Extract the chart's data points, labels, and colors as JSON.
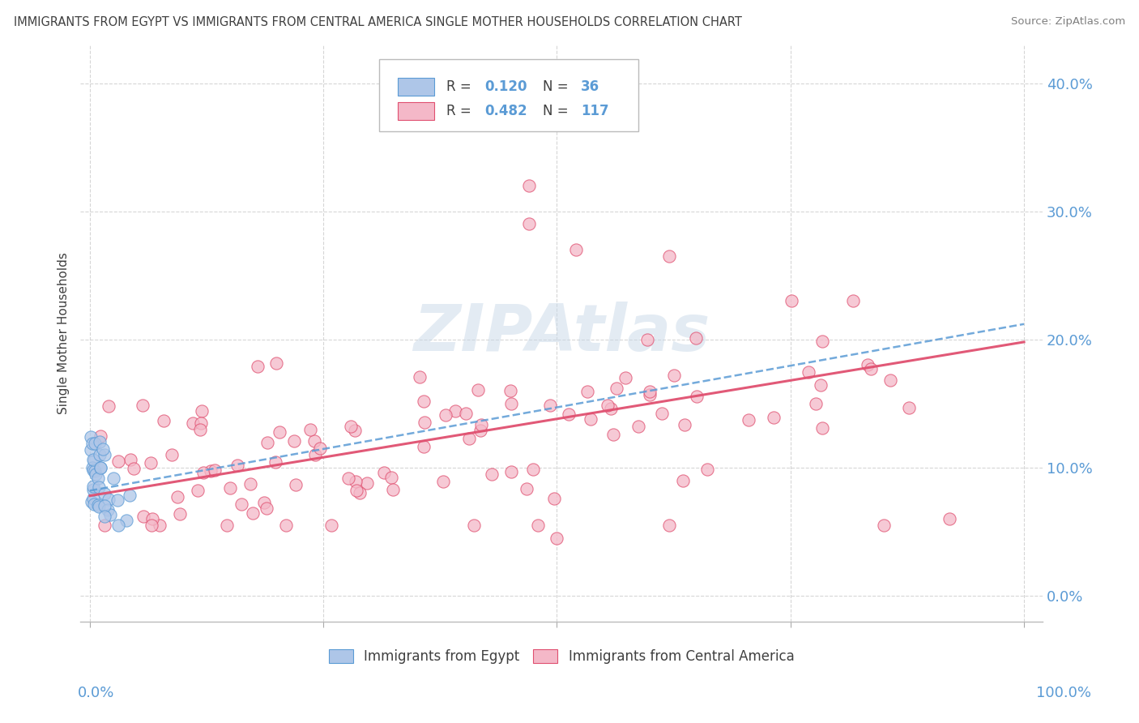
{
  "title": "IMMIGRANTS FROM EGYPT VS IMMIGRANTS FROM CENTRAL AMERICA SINGLE MOTHER HOUSEHOLDS CORRELATION CHART",
  "source": "Source: ZipAtlas.com",
  "ylabel": "Single Mother Households",
  "legend_R_egypt": "0.120",
  "legend_N_egypt": "36",
  "legend_R_ca": "0.482",
  "legend_N_ca": "117",
  "egypt_fill": "#aec6e8",
  "egypt_edge": "#5b9bd5",
  "ca_fill": "#f4b8c8",
  "ca_edge": "#e05070",
  "ca_line_color": "#e05070",
  "egypt_line_color": "#5b9bd5",
  "watermark_color": "#c8d8e8",
  "background_color": "#ffffff",
  "grid_color": "#cccccc",
  "title_color": "#404040",
  "axis_label_color": "#5b9bd5",
  "R_value_color": "#5b9bd5",
  "ylim_min": -0.02,
  "ylim_max": 0.43,
  "xlim_min": -0.01,
  "xlim_max": 1.02
}
